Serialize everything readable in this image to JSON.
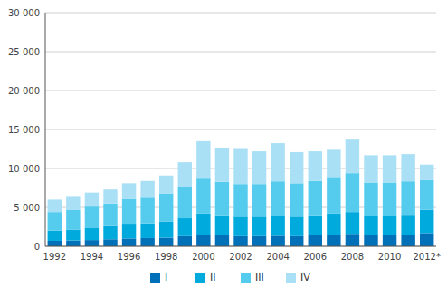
{
  "chart_data": {
    "type": "bar",
    "stacked": true,
    "grid": true,
    "legend": "bottom",
    "categories": [
      "1992",
      null,
      "1994",
      null,
      "1996",
      null,
      "1998",
      null,
      "2000",
      null,
      "2002",
      null,
      "2004",
      null,
      "2006",
      null,
      "2008",
      null,
      "2010",
      null,
      "2012*"
    ],
    "series": [
      {
        "name": "I",
        "color": "#0070b8",
        "values": [
          700,
          750,
          800,
          900,
          1000,
          1050,
          1100,
          1300,
          1500,
          1400,
          1300,
          1300,
          1350,
          1300,
          1400,
          1500,
          1600,
          1400,
          1400,
          1450,
          1700
        ]
      },
      {
        "name": "II",
        "color": "#00aadc",
        "values": [
          1300,
          1400,
          1600,
          1700,
          1900,
          1900,
          2100,
          2300,
          2700,
          2600,
          2500,
          2500,
          2600,
          2500,
          2600,
          2700,
          2800,
          2500,
          2500,
          2600,
          3000
        ]
      },
      {
        "name": "III",
        "color": "#55ccee",
        "values": [
          2400,
          2500,
          2700,
          2900,
          3200,
          3300,
          3600,
          4000,
          4500,
          4300,
          4200,
          4200,
          4400,
          4300,
          4400,
          4600,
          5000,
          4300,
          4300,
          4300,
          3800
        ]
      },
      {
        "name": "IV",
        "color": "#aae0f5",
        "values": [
          1600,
          1700,
          1800,
          1800,
          2000,
          2150,
          2300,
          3200,
          4800,
          4300,
          4500,
          4200,
          4900,
          4000,
          3800,
          3600,
          4300,
          3500,
          3500,
          3500,
          2000
        ]
      }
    ],
    "ylim": [
      0,
      30000
    ],
    "yticks": [
      0,
      {
        "value": 5000,
        "label": "5 000"
      },
      {
        "value": 10000,
        "label": "10 000"
      },
      {
        "value": 15000,
        "label": "15 000"
      },
      {
        "value": 20000,
        "label": "20 000"
      },
      {
        "value": 25000,
        "label": "25 000"
      },
      {
        "value": 30000,
        "label": "30 000"
      }
    ]
  }
}
